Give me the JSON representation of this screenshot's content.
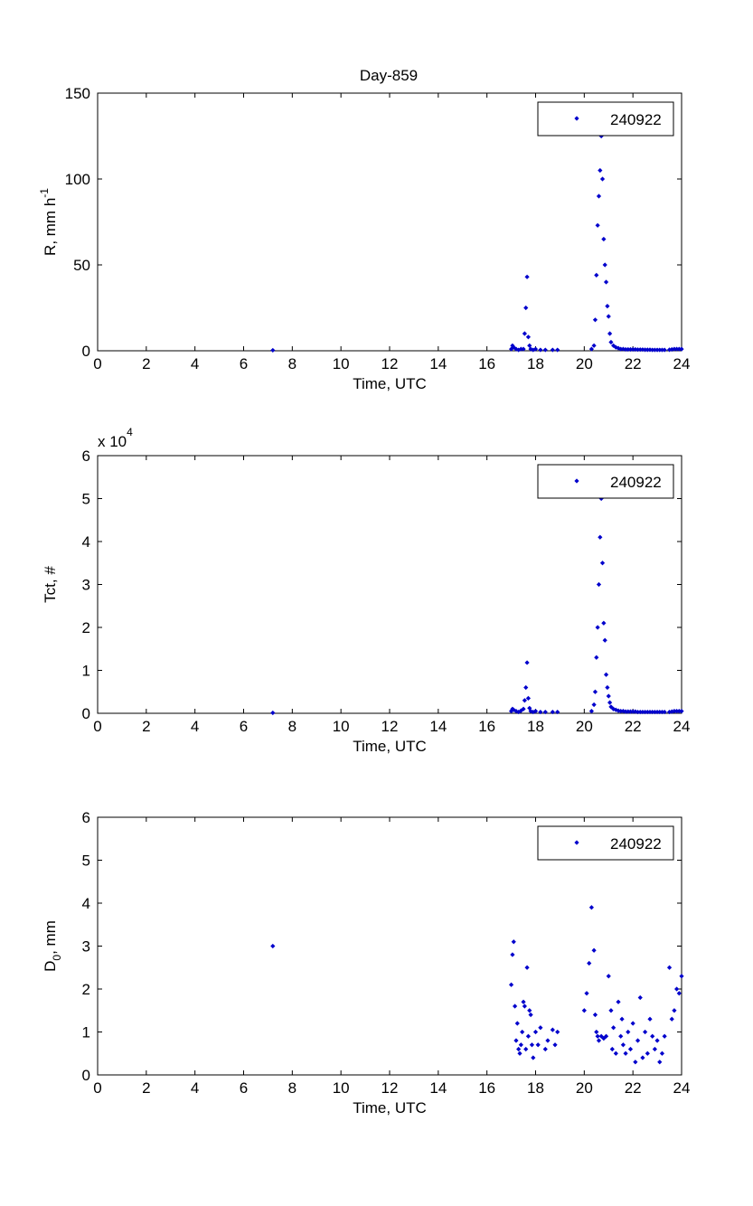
{
  "figure": {
    "title": "Day-859"
  },
  "colors": {
    "marker": "#0000cc",
    "axes": "#000000",
    "background": "#ffffff"
  },
  "chart_data": [
    {
      "type": "scatter",
      "title": "Day-859",
      "xlabel": "Time, UTC",
      "ylabel_main": "R, mm h",
      "ylabel_sup": "-1",
      "ylabel_sub": "",
      "ylabel_suffix": "",
      "xlim": [
        0,
        24
      ],
      "ylim": [
        0,
        150
      ],
      "xticks": [
        "0",
        "2",
        "4",
        "6",
        "8",
        "10",
        "12",
        "14",
        "16",
        "18",
        "20",
        "22",
        "24"
      ],
      "yticks": [
        "0",
        "50",
        "100",
        "150"
      ],
      "exponent_label": "",
      "exponent_sup": "",
      "grid": false,
      "legend_position": "top-right",
      "series": [
        {
          "name": "240922",
          "x": [
            7.2,
            17.0,
            17.05,
            17.1,
            17.2,
            17.3,
            17.4,
            17.5,
            17.55,
            17.6,
            17.65,
            17.7,
            17.75,
            17.8,
            17.9,
            18.0,
            18.2,
            18.4,
            18.7,
            18.9,
            20.3,
            20.4,
            20.45,
            20.5,
            20.55,
            20.6,
            20.65,
            20.7,
            20.75,
            20.8,
            20.85,
            20.9,
            20.95,
            21.0,
            21.05,
            21.1,
            21.2,
            21.3,
            21.4,
            21.5,
            21.6,
            21.7,
            21.8,
            21.9,
            22.0,
            22.1,
            22.2,
            22.3,
            22.4,
            22.5,
            22.6,
            22.7,
            22.8,
            22.9,
            23.0,
            23.1,
            23.2,
            23.3,
            23.5,
            23.6,
            23.7,
            23.8,
            23.9,
            24.0
          ],
          "y": [
            0.3,
            1,
            3,
            2,
            1,
            0.5,
            1,
            1,
            10,
            25,
            43,
            8,
            3,
            1,
            0.5,
            1,
            0.5,
            0.5,
            0.5,
            0.5,
            1,
            3,
            18,
            44,
            73,
            90,
            105,
            125,
            100,
            65,
            50,
            40,
            26,
            20,
            10,
            5,
            3,
            2,
            1.5,
            1,
            1,
            0.8,
            0.8,
            0.8,
            0.8,
            0.8,
            0.7,
            0.7,
            0.7,
            0.6,
            0.6,
            0.6,
            0.5,
            0.5,
            0.5,
            0.5,
            0.5,
            0.5,
            0.6,
            0.8,
            1,
            1,
            1,
            1
          ]
        }
      ]
    },
    {
      "type": "scatter",
      "title": "",
      "xlabel": "Time, UTC",
      "ylabel_main": "Tct, #",
      "ylabel_sup": "",
      "ylabel_sub": "",
      "ylabel_suffix": "",
      "xlim": [
        0,
        24
      ],
      "ylim": [
        0,
        6
      ],
      "xticks": [
        "0",
        "2",
        "4",
        "6",
        "8",
        "10",
        "12",
        "14",
        "16",
        "18",
        "20",
        "22",
        "24"
      ],
      "yticks": [
        "0",
        "1",
        "2",
        "3",
        "4",
        "5",
        "6"
      ],
      "exponent_label": "x 10",
      "exponent_sup": "4",
      "grid": false,
      "legend_position": "top-right",
      "series": [
        {
          "name": "240922",
          "x": [
            7.2,
            17.0,
            17.05,
            17.1,
            17.2,
            17.3,
            17.4,
            17.5,
            17.55,
            17.6,
            17.65,
            17.7,
            17.75,
            17.8,
            17.9,
            18.0,
            18.2,
            18.4,
            18.7,
            18.9,
            20.3,
            20.4,
            20.45,
            20.5,
            20.55,
            20.6,
            20.65,
            20.7,
            20.75,
            20.8,
            20.85,
            20.9,
            20.95,
            21.0,
            21.05,
            21.1,
            21.2,
            21.3,
            21.4,
            21.5,
            21.6,
            21.7,
            21.8,
            21.9,
            22.0,
            22.1,
            22.2,
            22.3,
            22.4,
            22.5,
            22.6,
            22.7,
            22.8,
            22.9,
            23.0,
            23.1,
            23.2,
            23.3,
            23.5,
            23.6,
            23.7,
            23.8,
            23.9,
            24.0
          ],
          "y": [
            0.01,
            0.05,
            0.1,
            0.08,
            0.05,
            0.03,
            0.06,
            0.1,
            0.3,
            0.6,
            1.18,
            0.35,
            0.12,
            0.05,
            0.03,
            0.05,
            0.03,
            0.03,
            0.03,
            0.03,
            0.05,
            0.2,
            0.5,
            1.3,
            2.0,
            3.0,
            4.1,
            5.0,
            3.5,
            2.1,
            1.7,
            0.9,
            0.6,
            0.4,
            0.25,
            0.15,
            0.1,
            0.08,
            0.06,
            0.05,
            0.05,
            0.04,
            0.04,
            0.04,
            0.04,
            0.04,
            0.03,
            0.03,
            0.03,
            0.03,
            0.03,
            0.03,
            0.03,
            0.03,
            0.03,
            0.03,
            0.03,
            0.03,
            0.03,
            0.04,
            0.05,
            0.05,
            0.05,
            0.05
          ]
        }
      ]
    },
    {
      "type": "scatter",
      "title": "",
      "xlabel": "Time, UTC",
      "ylabel_main": "D",
      "ylabel_sup": "",
      "ylabel_sub": "0",
      "ylabel_suffix": ", mm",
      "xlim": [
        0,
        24
      ],
      "ylim": [
        0,
        6
      ],
      "xticks": [
        "0",
        "2",
        "4",
        "6",
        "8",
        "10",
        "12",
        "14",
        "16",
        "18",
        "20",
        "22",
        "24"
      ],
      "yticks": [
        "0",
        "1",
        "2",
        "3",
        "4",
        "5",
        "6"
      ],
      "exponent_label": "",
      "exponent_sup": "",
      "grid": false,
      "legend_position": "top-right",
      "series": [
        {
          "name": "240922",
          "x": [
            7.2,
            17.0,
            17.05,
            17.1,
            17.15,
            17.2,
            17.25,
            17.3,
            17.35,
            17.4,
            17.45,
            17.5,
            17.55,
            17.6,
            17.65,
            17.7,
            17.75,
            17.8,
            17.85,
            17.9,
            18.0,
            18.1,
            18.2,
            18.4,
            18.5,
            18.7,
            18.8,
            18.9,
            20.0,
            20.1,
            20.2,
            20.3,
            20.4,
            20.45,
            20.5,
            20.55,
            20.6,
            20.7,
            20.8,
            20.9,
            21.0,
            21.1,
            21.15,
            21.2,
            21.3,
            21.4,
            21.5,
            21.55,
            21.6,
            21.7,
            21.8,
            21.9,
            22.0,
            22.1,
            22.2,
            22.3,
            22.4,
            22.5,
            22.6,
            22.7,
            22.8,
            22.9,
            23.0,
            23.1,
            23.2,
            23.3,
            23.5,
            23.6,
            23.7,
            23.8,
            23.9,
            24.0
          ],
          "y": [
            3.0,
            2.1,
            2.8,
            3.1,
            1.6,
            0.8,
            1.2,
            0.6,
            0.5,
            0.7,
            1.0,
            1.7,
            1.6,
            0.6,
            2.5,
            0.9,
            1.5,
            1.4,
            0.7,
            0.4,
            1.0,
            0.7,
            1.1,
            0.6,
            0.8,
            1.05,
            0.7,
            1.0,
            1.5,
            1.9,
            2.6,
            3.9,
            2.9,
            1.4,
            1.0,
            0.9,
            0.8,
            0.9,
            0.85,
            0.9,
            2.3,
            1.5,
            0.6,
            1.1,
            0.5,
            1.7,
            0.9,
            1.3,
            0.7,
            0.5,
            1.0,
            0.6,
            1.2,
            0.3,
            0.8,
            1.8,
            0.4,
            1.0,
            0.5,
            1.3,
            0.9,
            0.6,
            0.8,
            0.3,
            0.5,
            0.9,
            2.5,
            1.3,
            1.5,
            2.0,
            1.9,
            2.3
          ]
        }
      ]
    }
  ]
}
